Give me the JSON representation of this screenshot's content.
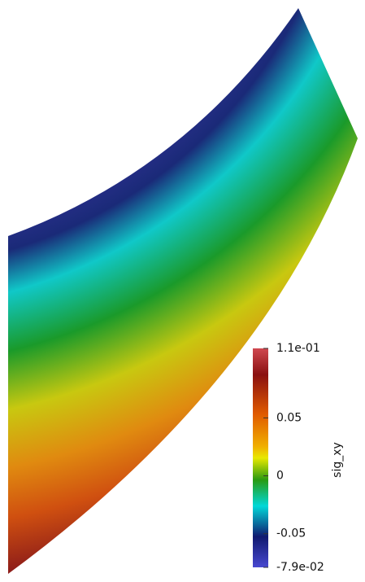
{
  "colorbar": {
    "title": "sig_xy",
    "range": [
      {
        "value": -0.079,
        "label": "-7.9e-02"
      },
      {
        "value": 0.11,
        "label": "1.1e-01"
      }
    ],
    "ticks": [
      0.05,
      0,
      -0.05
    ]
  }
}
